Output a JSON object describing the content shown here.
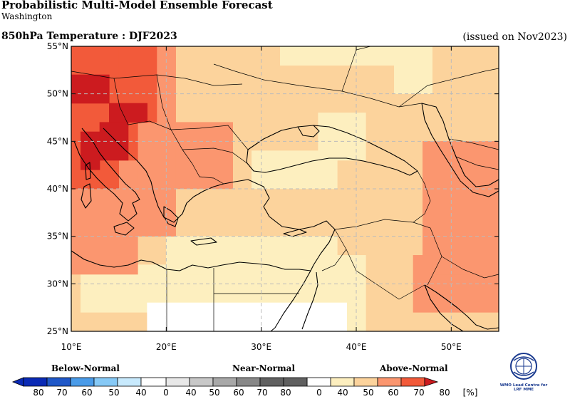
{
  "header": {
    "title": "Probabilistic Multi-Model Ensemble Forecast",
    "subtitle": "Washington",
    "variable": "850hPa Temperature : DJF2023",
    "issued": "(issued on Nov2023)"
  },
  "map": {
    "lon_range": [
      10,
      55
    ],
    "lat_range": [
      25,
      55
    ],
    "grid": "dashed",
    "lat_ticks": [
      "25°N",
      "30°N",
      "35°N",
      "40°N",
      "45°N",
      "50°N",
      "55°N"
    ],
    "lon_ticks": [
      "10°E",
      "20°E",
      "30°E",
      "40°E",
      "50°E"
    ],
    "colors": {
      "above_40": "#fdefbf",
      "above_50": "#fcd39c",
      "above_60": "#fb966f",
      "above_70": "#f25a3a",
      "above_80": "#cc1b1f",
      "below_40": "#c8eafd",
      "below_50": "#86c9f6",
      "below_60": "#4a9be8",
      "below_70": "#2058c8",
      "below_80": "#0a2ab5",
      "near_40": "#e8e8e8",
      "near_50": "#c8c8c8",
      "near_60": "#a8a8a8",
      "near_70": "#888888",
      "near_80": "#606060",
      "none": "#ffffff"
    }
  },
  "colorbar": {
    "categories": [
      "Below-Normal",
      "Near-Normal",
      "Above-Normal"
    ],
    "below_labels": [
      "80",
      "70",
      "60",
      "50",
      "40"
    ],
    "near_labels": [
      "0",
      "40",
      "50",
      "60",
      "70",
      "80"
    ],
    "above_labels": [
      "0",
      "40",
      "50",
      "60",
      "70",
      "80"
    ],
    "unit": "[%]"
  },
  "logo": {
    "name": "wmo-logo",
    "text_line1": "WMO Lead Centre for",
    "text_line2": "LRF MME"
  }
}
